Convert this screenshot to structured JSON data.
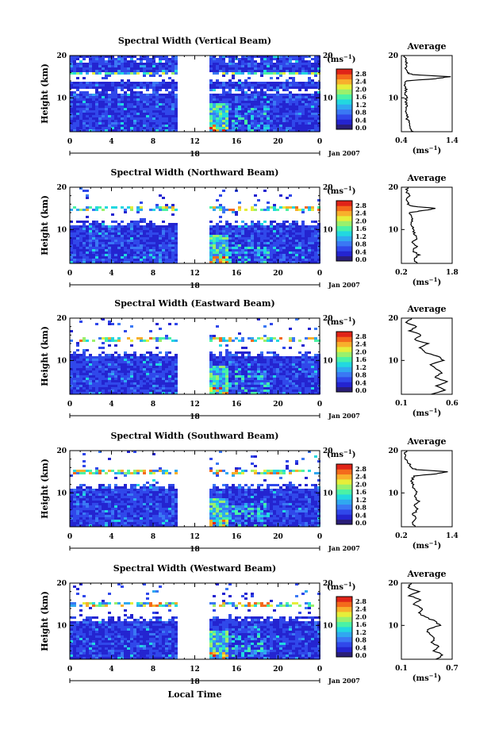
{
  "figure": {
    "x_axis_label": "Local Time",
    "date_label": "Jan 2007",
    "day_label": "18",
    "unit_label": "(ms",
    "unit_exponent": "−1",
    "colors": [
      "#2a1e78",
      "#2424d0",
      "#3048ea",
      "#3a78f4",
      "#30a8f0",
      "#22d8e0",
      "#4af2a6",
      "#9af06c",
      "#e6ee3a",
      "#f8b02c",
      "#f46a1c",
      "#e02418"
    ]
  },
  "chart_data": [
    {
      "type": "heatmap",
      "title": "Spectral Width (Vertical Beam)",
      "ylabel": "Height (km)",
      "xlim": [
        0,
        24
      ],
      "ylim": [
        2,
        20
      ],
      "x_ticks": [
        "0",
        "4",
        "8",
        "12",
        "16",
        "20",
        "0"
      ],
      "y_ticks": [
        "20",
        "10"
      ],
      "colorbar_ticks": [
        "2.8",
        "2.4",
        "2.0",
        "1.6",
        "1.2",
        "0.8",
        "0.4",
        "0.0"
      ],
      "data_gap_hours": [
        10.5,
        13.4
      ],
      "profile": {
        "title": "Average",
        "xlim": [
          0.4,
          1.4
        ],
        "x_ticks": [
          "0.4",
          "1.4"
        ],
        "y_ticks": [
          "20",
          "10"
        ],
        "heights": [
          2,
          3,
          4,
          5,
          6,
          7,
          8,
          9,
          10,
          11,
          12,
          13,
          14,
          14.5,
          15,
          15.5,
          16,
          17,
          18,
          19,
          20
        ],
        "values": [
          0.62,
          0.55,
          0.57,
          0.5,
          0.53,
          0.48,
          0.52,
          0.49,
          0.5,
          0.47,
          0.5,
          0.45,
          0.48,
          1.05,
          1.35,
          0.6,
          0.52,
          0.47,
          0.5,
          0.48,
          0.46
        ]
      }
    },
    {
      "type": "heatmap",
      "title": "Spectral Width (Northward Beam)",
      "ylabel": "Height (km)",
      "xlim": [
        0,
        24
      ],
      "ylim": [
        2,
        20
      ],
      "x_ticks": [
        "0",
        "4",
        "8",
        "12",
        "16",
        "20",
        "0"
      ],
      "y_ticks": [
        "20",
        "10"
      ],
      "colorbar_ticks": [
        "2.8",
        "2.4",
        "2.0",
        "1.6",
        "1.2",
        "0.8",
        "0.4",
        "0.0"
      ],
      "data_gap_hours": [
        10.5,
        13.4
      ],
      "profile": {
        "title": "Average",
        "xlim": [
          0.2,
          1.8
        ],
        "x_ticks": [
          "0.2",
          "1.8"
        ],
        "y_ticks": [
          "20",
          "10"
        ],
        "heights": [
          2,
          3,
          4,
          5,
          6,
          7,
          8,
          9,
          10,
          11,
          12,
          13,
          14,
          14.5,
          15,
          15.5,
          16,
          17,
          18,
          19,
          20
        ],
        "values": [
          0.7,
          0.6,
          0.75,
          0.55,
          0.68,
          0.5,
          0.72,
          0.58,
          0.62,
          0.48,
          0.55,
          0.5,
          0.45,
          0.9,
          1.3,
          0.55,
          0.42,
          0.38,
          0.45,
          0.35,
          0.4
        ]
      }
    },
    {
      "type": "heatmap",
      "title": "Spectral Width (Eastward Beam)",
      "ylabel": "Height (km)",
      "xlim": [
        0,
        24
      ],
      "ylim": [
        2,
        20
      ],
      "x_ticks": [
        "0",
        "4",
        "8",
        "12",
        "16",
        "20",
        "0"
      ],
      "y_ticks": [
        "20",
        "10"
      ],
      "colorbar_ticks": [
        "2.8",
        "2.4",
        "2.0",
        "1.6",
        "1.2",
        "0.8",
        "0.4",
        "0.0"
      ],
      "data_gap_hours": [
        10.5,
        13.4
      ],
      "profile": {
        "title": "Average",
        "xlim": [
          0.1,
          0.6
        ],
        "x_ticks": [
          "0.1",
          "0.6"
        ],
        "y_ticks": [
          "20",
          "10"
        ],
        "heights": [
          2,
          3,
          4,
          5,
          6,
          7,
          8,
          9,
          10,
          11,
          12,
          13,
          14,
          15,
          16,
          17,
          18,
          19,
          20
        ],
        "values": [
          0.4,
          0.52,
          0.45,
          0.55,
          0.42,
          0.5,
          0.44,
          0.38,
          0.52,
          0.46,
          0.32,
          0.28,
          0.36,
          0.22,
          0.3,
          0.18,
          0.25,
          0.15,
          0.2
        ]
      }
    },
    {
      "type": "heatmap",
      "title": "Spectral Width (Southward Beam)",
      "ylabel": "Height (km)",
      "xlim": [
        0,
        24
      ],
      "ylim": [
        2,
        20
      ],
      "x_ticks": [
        "0",
        "4",
        "8",
        "12",
        "16",
        "20",
        "0"
      ],
      "y_ticks": [
        "20",
        "10"
      ],
      "colorbar_ticks": [
        "2.8",
        "2.4",
        "2.0",
        "1.6",
        "1.2",
        "0.8",
        "0.4",
        "0.0"
      ],
      "data_gap_hours": [
        10.5,
        13.4
      ],
      "profile": {
        "title": "Average",
        "xlim": [
          0.2,
          1.4
        ],
        "x_ticks": [
          "0.2",
          "1.4"
        ],
        "y_ticks": [
          "20",
          "10"
        ],
        "heights": [
          2,
          3,
          4,
          5,
          6,
          7,
          8,
          9,
          10,
          11,
          12,
          13,
          14,
          14.5,
          15,
          15.5,
          16,
          17,
          18,
          19,
          20
        ],
        "values": [
          0.52,
          0.45,
          0.55,
          0.48,
          0.58,
          0.5,
          0.6,
          0.52,
          0.56,
          0.5,
          0.48,
          0.44,
          0.5,
          1.0,
          1.3,
          0.55,
          0.42,
          0.38,
          0.3,
          0.28,
          0.32
        ]
      }
    },
    {
      "type": "heatmap",
      "title": "Spectral Width (Westward Beam)",
      "ylabel": "Height (km)",
      "xlim": [
        0,
        24
      ],
      "ylim": [
        2,
        20
      ],
      "x_ticks": [
        "0",
        "4",
        "8",
        "12",
        "16",
        "20",
        "0"
      ],
      "y_ticks": [
        "20",
        "10"
      ],
      "colorbar_ticks": [
        "2.8",
        "2.4",
        "2.0",
        "1.6",
        "1.2",
        "0.8",
        "0.4",
        "0.0"
      ],
      "data_gap_hours": [
        10.5,
        13.4
      ],
      "profile": {
        "title": "Average",
        "xlim": [
          0.1,
          0.7
        ],
        "x_ticks": [
          "0.1",
          "0.7"
        ],
        "y_ticks": [
          "20",
          "10"
        ],
        "heights": [
          2,
          3,
          4,
          5,
          6,
          7,
          8,
          9,
          10,
          11,
          12,
          13,
          14,
          15,
          16,
          17,
          18,
          19,
          20
        ],
        "values": [
          0.5,
          0.6,
          0.48,
          0.55,
          0.45,
          0.5,
          0.42,
          0.4,
          0.55,
          0.5,
          0.38,
          0.3,
          0.35,
          0.25,
          0.32,
          0.2,
          0.3,
          0.18,
          0.22
        ]
      }
    }
  ]
}
